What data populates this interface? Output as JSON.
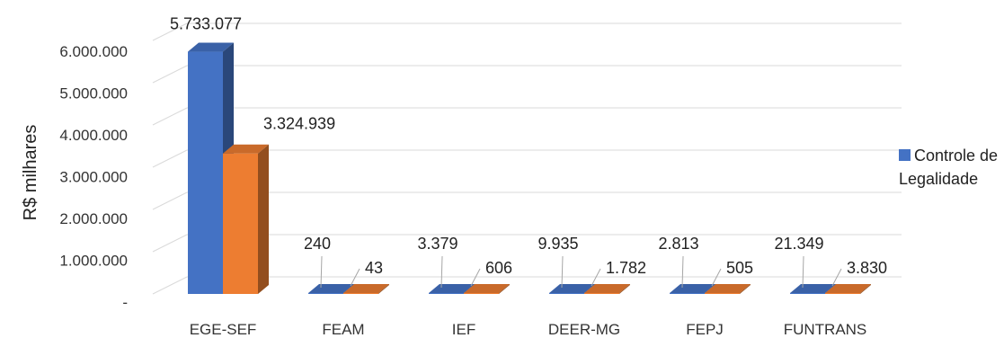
{
  "chart_data": {
    "type": "bar",
    "ylabel": "R$ milhares",
    "ylim": [
      0,
      6000000
    ],
    "yticks": [
      {
        "value": 0,
        "label": "-"
      },
      {
        "value": 1000000,
        "label": "1.000.000"
      },
      {
        "value": 2000000,
        "label": "2.000.000"
      },
      {
        "value": 3000000,
        "label": "3.000.000"
      },
      {
        "value": 4000000,
        "label": "4.000.000"
      },
      {
        "value": 5000000,
        "label": "5.000.000"
      },
      {
        "value": 6000000,
        "label": "6.000.000"
      }
    ],
    "categories": [
      "EGE-SEF",
      "FEAM",
      "IEF",
      "DEER-MG",
      "FEPJ",
      "FUNTRANS"
    ],
    "series": [
      {
        "name": "",
        "color": "#4472C4",
        "values": [
          5733077,
          240,
          3379,
          9935,
          2813,
          21349
        ],
        "labels": [
          "5.733.077",
          "240",
          "3.379",
          "9.935",
          "2.813",
          "21.349"
        ]
      },
      {
        "name": "",
        "color": "#ED7D31",
        "values": [
          3324939,
          43,
          606,
          1782,
          505,
          3830
        ],
        "labels": [
          "3.324.939",
          "43",
          "606",
          "1.782",
          "505",
          "3.830"
        ]
      }
    ],
    "legend": {
      "position": "right",
      "items": [
        {
          "label": "Controle de Legalidade",
          "color": "#4472C4"
        }
      ]
    },
    "grid": true,
    "style": "3d-column"
  }
}
